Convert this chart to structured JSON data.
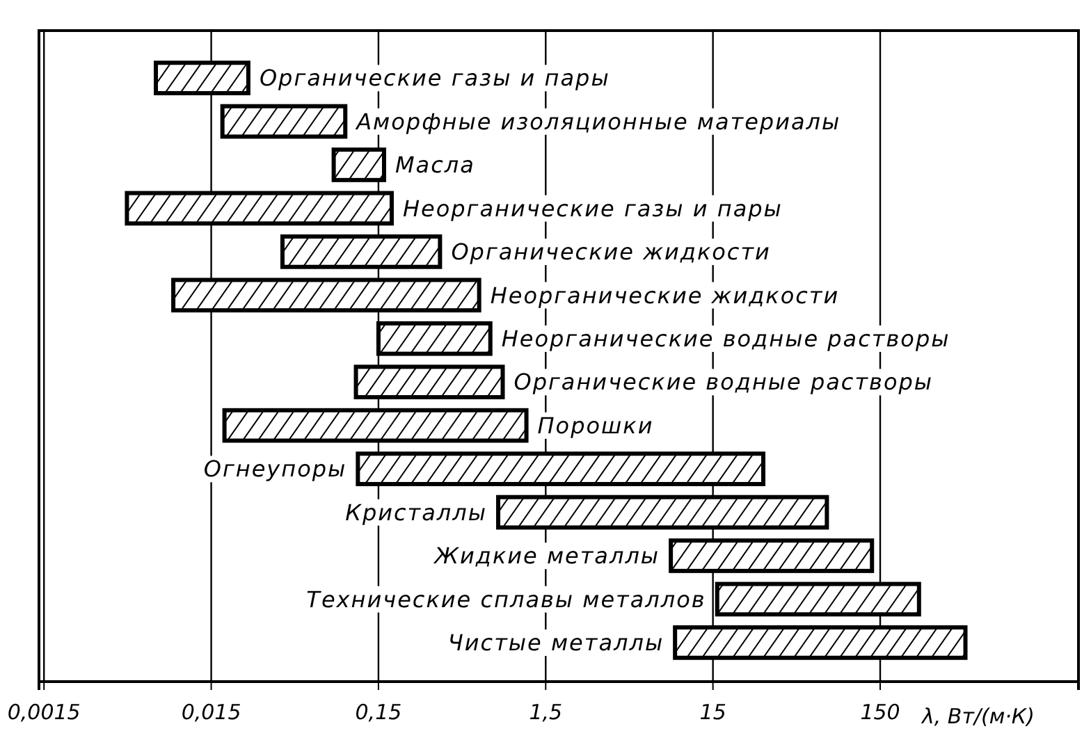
{
  "chart_data": {
    "type": "bar",
    "orientation": "horizontal",
    "log": "x",
    "grid": "x",
    "xlabel": "λ, Вт/(м·К)",
    "categories": [
      "Органические газы и пары",
      "Аморфные изоляционные материалы",
      "Масла",
      "Неорганические газы и пары",
      "Органические жидкости",
      "Неорганические жидкости",
      "Неорганические водные растворы",
      "Органические водные растворы",
      "Порошки",
      "Огнеупоры",
      "Кристаллы",
      "Жидкие металлы",
      "Технические сплавы металлов",
      "Чистые металлы"
    ],
    "base": [
      0.007,
      0.0175,
      0.081,
      0.0047,
      0.04,
      0.0089,
      0.15,
      0.11,
      0.018,
      0.113,
      0.78,
      8.4,
      15.9,
      8.9
    ],
    "values": [
      0.018,
      0.0775,
      0.081,
      0.1753,
      0.31,
      0.5911,
      0.55,
      0.72,
      1.132,
      29.887,
      71.22,
      125.6,
      240.1,
      476.1
    ],
    "color": "#000000",
    "xlim": [
      0.0014,
      2300
    ],
    "xticks": [
      {
        "value": 0.0015,
        "label": "0,0015"
      },
      {
        "value": 0.015,
        "label": "0,015"
      },
      {
        "value": 0.15,
        "label": "0,15"
      },
      {
        "value": 1.5,
        "label": "1,5"
      },
      15,
      150
    ]
  }
}
